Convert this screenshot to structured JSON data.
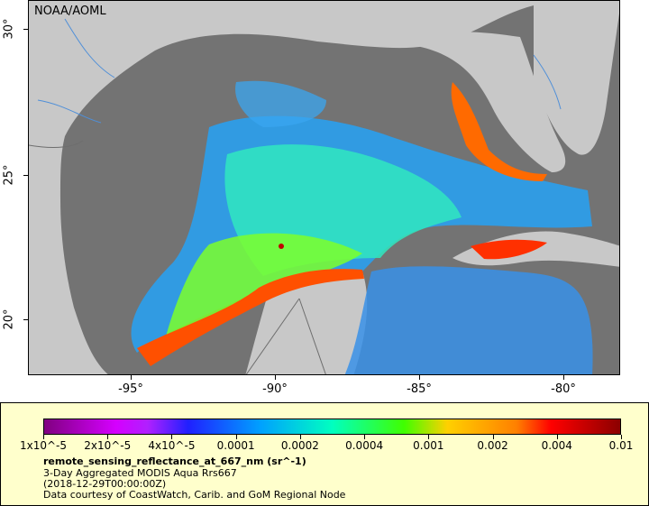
{
  "map": {
    "credit": "NOAA/AOML",
    "x_ticks": [
      "-95°",
      "-90°",
      "-85°",
      "-80°"
    ],
    "y_ticks": [
      "30°",
      "25°",
      "20°"
    ],
    "colors": {
      "land": "#c8c8c8",
      "no_data": "#737373",
      "rivers": "#4f8fd8",
      "borders": "#6e6e6e"
    }
  },
  "legend": {
    "colorbar_labels": [
      "1x10^-5",
      "2x10^-5",
      "4x10^-5",
      "0.0001",
      "0.0002",
      "0.0004",
      "0.001",
      "0.002",
      "0.004",
      "0.01"
    ],
    "variable": "remote_sensing_reflectance_at_667_nm (sr^-1)",
    "product": "3-Day Aggregated MODIS Aqua Rrs667",
    "timestamp": "(2018-12-29T00:00:00Z)",
    "courtesy": "Data courtesy of CoastWatch, Carib. and GoM Regional Node"
  }
}
